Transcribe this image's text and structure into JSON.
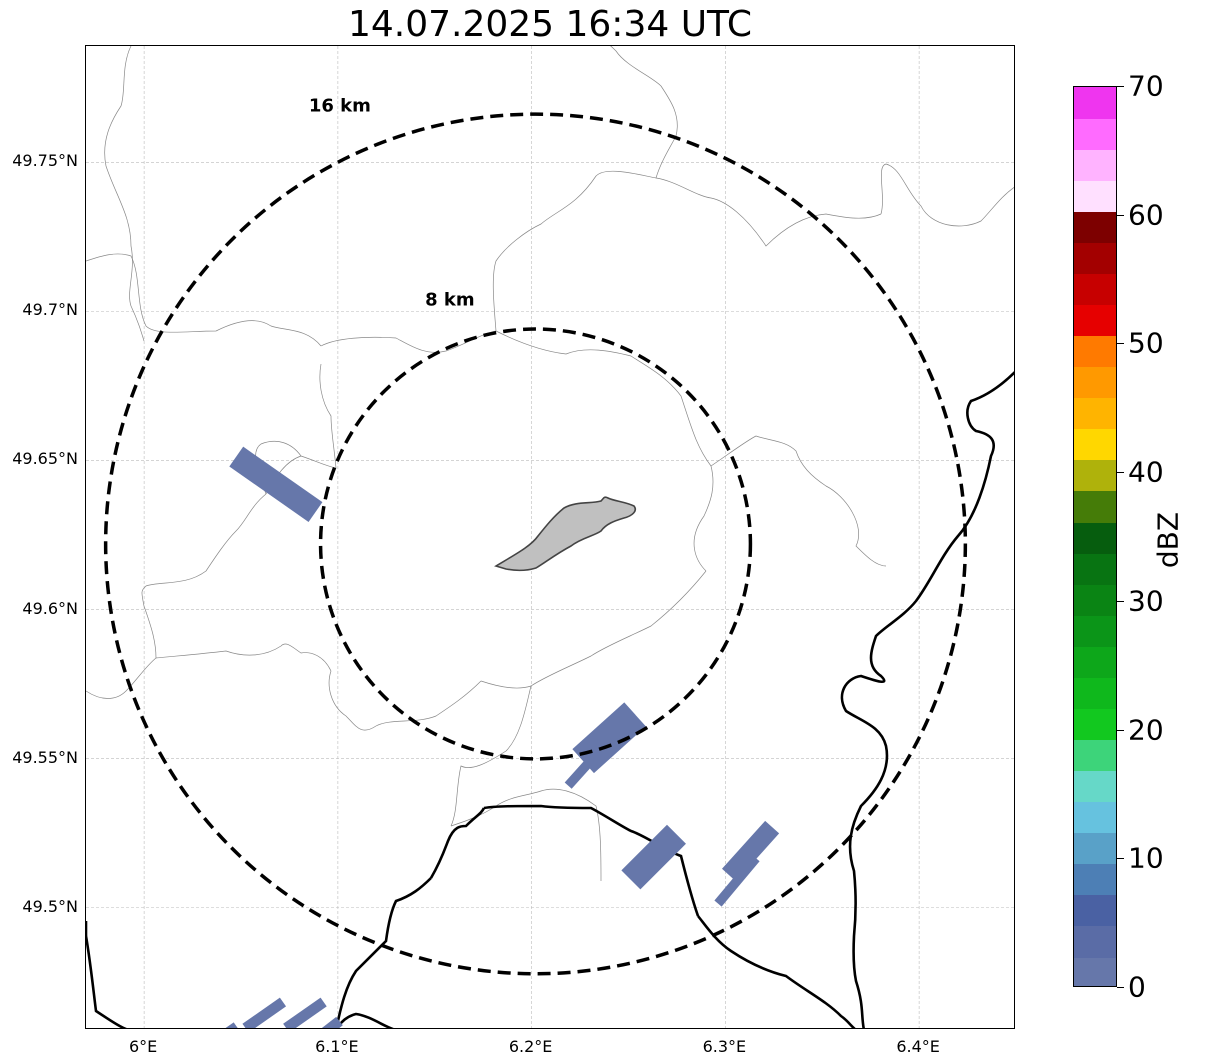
{
  "title": "14.07.2025 16:34 UTC",
  "map": {
    "lon_range": [
      5.97,
      6.45
    ],
    "lat_range": [
      49.459,
      49.789
    ],
    "gridlines": true,
    "lat_ticks": [
      {
        "value": 49.5,
        "label": "49.5°N"
      },
      {
        "value": 49.55,
        "label": "49.55°N"
      },
      {
        "value": 49.6,
        "label": "49.6°N"
      },
      {
        "value": 49.65,
        "label": "49.65°N"
      },
      {
        "value": 49.7,
        "label": "49.7°N"
      },
      {
        "value": 49.75,
        "label": "49.75°N"
      }
    ],
    "lon_ticks": [
      {
        "value": 6.0,
        "label": "6°E"
      },
      {
        "value": 6.1,
        "label": "6.1°E"
      },
      {
        "value": 6.2,
        "label": "6.2°E"
      },
      {
        "value": 6.3,
        "label": "6.3°E"
      },
      {
        "value": 6.4,
        "label": "6.4°E"
      }
    ],
    "center": {
      "lon": 6.202,
      "lat": 49.622
    },
    "rings": [
      {
        "radius_km": 8,
        "label": "8 km",
        "label_lon": 6.145,
        "label_lat": 49.702
      },
      {
        "radius_km": 16,
        "label": "16 km",
        "label_lon": 6.085,
        "label_lat": 49.767
      }
    ],
    "echo_color": "#6677aa",
    "echoes": [
      {
        "lon": 6.068,
        "lat": 49.642,
        "len_km": 3.6,
        "wid_km": 0.9,
        "angle": 35
      },
      {
        "lon": 6.24,
        "lat": 49.557,
        "len_km": 2.6,
        "wid_km": 1.2,
        "angle": -42
      },
      {
        "lon": 6.23,
        "lat": 49.549,
        "len_km": 2.4,
        "wid_km": 0.35,
        "angle": -48
      },
      {
        "lon": 6.263,
        "lat": 49.517,
        "len_km": 2.4,
        "wid_km": 1.0,
        "angle": -45
      },
      {
        "lon": 6.313,
        "lat": 49.519,
        "len_km": 2.4,
        "wid_km": 0.7,
        "angle": -48
      },
      {
        "lon": 6.306,
        "lat": 49.509,
        "len_km": 2.2,
        "wid_km": 0.35,
        "angle": -50
      },
      {
        "lon": 6.062,
        "lat": 49.464,
        "len_km": 1.7,
        "wid_km": 0.4,
        "angle": -35
      },
      {
        "lon": 6.083,
        "lat": 49.464,
        "len_km": 1.7,
        "wid_km": 0.4,
        "angle": -35
      },
      {
        "lon": 6.091,
        "lat": 49.457,
        "len_km": 1.8,
        "wid_km": 0.4,
        "angle": -38
      },
      {
        "lon": 6.041,
        "lat": 49.457,
        "len_km": 1.2,
        "wid_km": 0.4,
        "angle": -35
      }
    ]
  },
  "colorbar": {
    "label": "dBZ",
    "min": 0,
    "max": 70,
    "ticks": [
      "0",
      "10",
      "20",
      "30",
      "40",
      "50",
      "60",
      "70"
    ],
    "colors": [
      "#6677aa",
      "#5a6ca6",
      "#4a61a3",
      "#4d7fb5",
      "#59a1c8",
      "#66c2df",
      "#66d8c8",
      "#3dd47a",
      "#12c81f",
      "#0fb81c",
      "#0da71a",
      "#0b9518",
      "#0a8414",
      "#087412",
      "#065d0e",
      "#457c08",
      "#afb20b",
      "#ffd700",
      "#ffb400",
      "#ff9900",
      "#ff7a00",
      "#e60000",
      "#c70000",
      "#a30000",
      "#7d0000",
      "#ffe0ff",
      "#ffb3ff",
      "#ff6bff",
      "#ef35ef"
    ]
  }
}
